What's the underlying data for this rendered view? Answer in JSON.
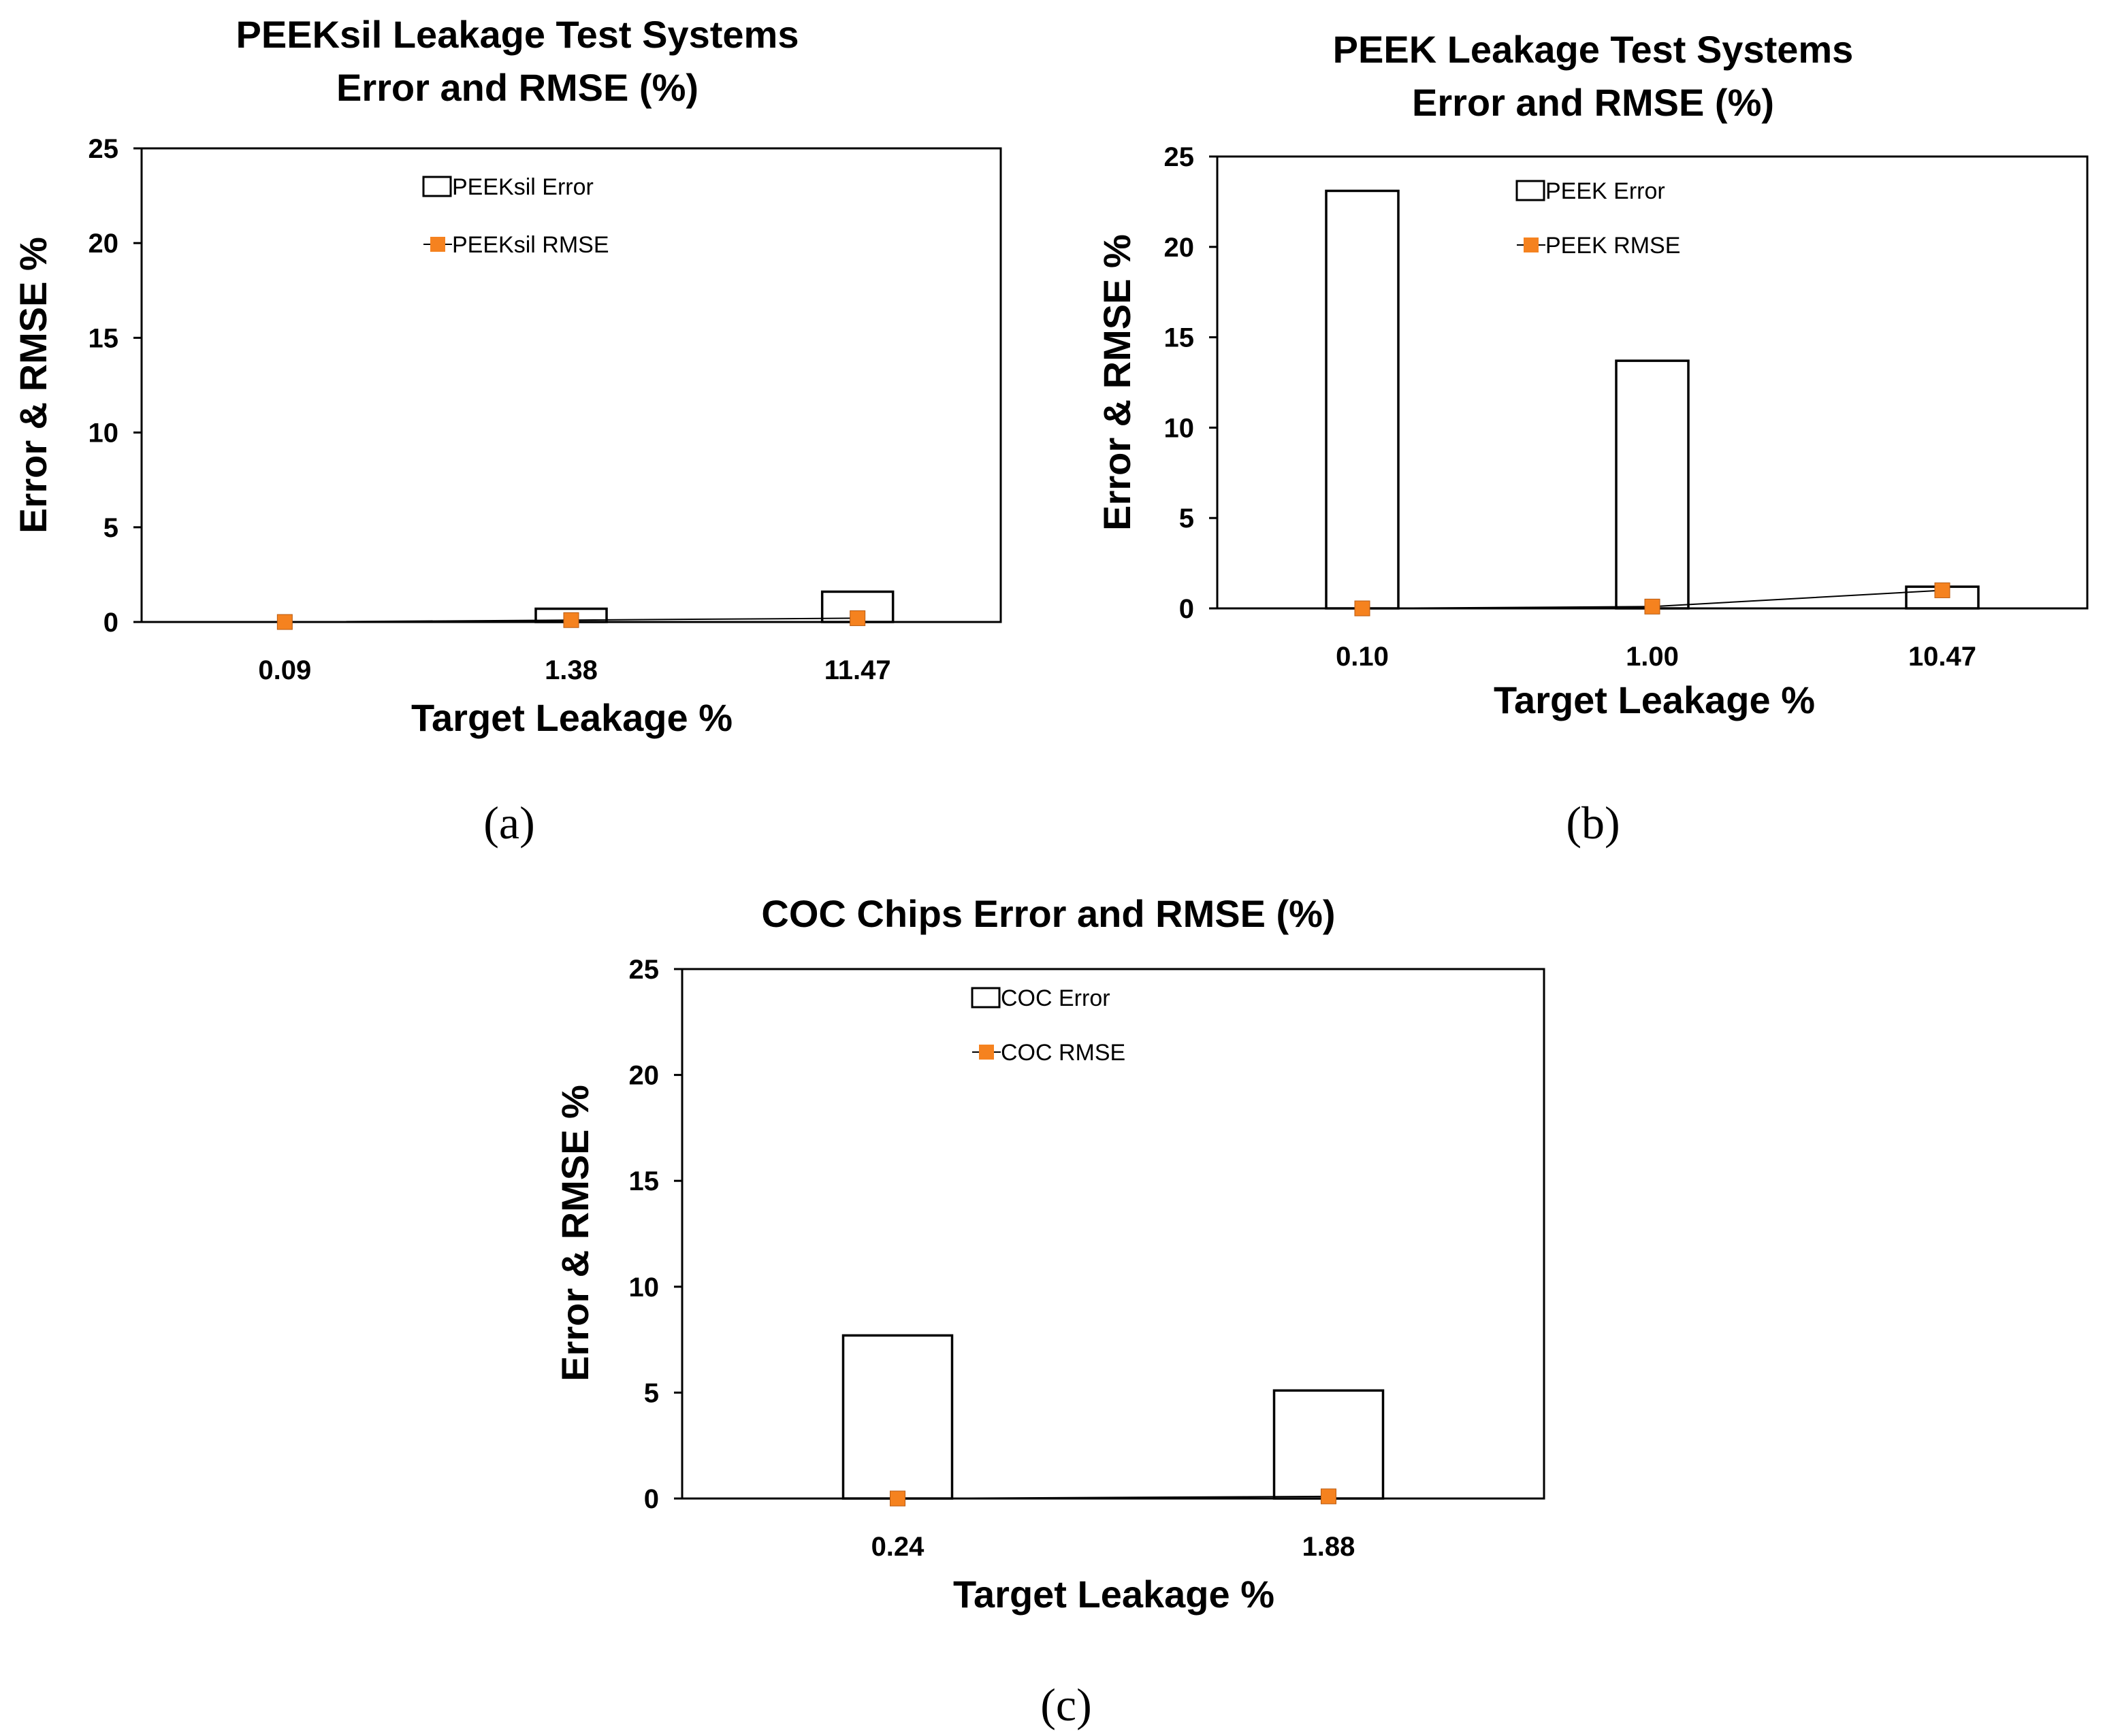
{
  "chart_data": [
    {
      "type": "bar",
      "panel": "(a)",
      "title": [
        "PEEKsil Leakage Test Systems",
        "Error and RMSE (%)"
      ],
      "xlabel": "Target Leakage %",
      "ylabel": "Error & RMSE %",
      "ylim": [
        0,
        25
      ],
      "yticks": [
        "0",
        "5",
        "10",
        "15",
        "20",
        "25"
      ],
      "categories": [
        "0.09",
        "1.38",
        "11.47"
      ],
      "series": [
        {
          "name": "PEEKsil Error",
          "kind": "bar",
          "values": [
            0.0,
            0.7,
            1.6
          ]
        },
        {
          "name": "PEEKsil RMSE",
          "kind": "line-marker",
          "values": [
            0.0,
            0.1,
            0.2
          ]
        }
      ],
      "grid": false,
      "legend": "top-center"
    },
    {
      "type": "bar",
      "panel": "(b)",
      "title": [
        "PEEK Leakage Test Systems",
        "Error and RMSE (%)"
      ],
      "xlabel": "Target Leakage %",
      "ylabel": "Error & RMSE %",
      "ylim": [
        0,
        25
      ],
      "yticks": [
        "0",
        "5",
        "10",
        "15",
        "20",
        "25"
      ],
      "categories": [
        "0.10",
        "1.00",
        "10.47"
      ],
      "series": [
        {
          "name": "PEEK Error",
          "kind": "bar",
          "values": [
            23.1,
            13.7,
            1.2
          ]
        },
        {
          "name": "PEEK RMSE",
          "kind": "line-marker",
          "values": [
            0.0,
            0.1,
            1.0
          ]
        }
      ],
      "grid": false,
      "legend": "top-center"
    },
    {
      "type": "bar",
      "panel": "(c)",
      "title": [
        "COC Chips Error and RMSE (%)"
      ],
      "xlabel": "Target Leakage %",
      "ylabel": "Error & RMSE  %",
      "ylim": [
        0,
        25
      ],
      "yticks": [
        "0",
        "5",
        "10",
        "15",
        "20",
        "25"
      ],
      "categories": [
        "0.24",
        "1.88"
      ],
      "series": [
        {
          "name": "COC Error",
          "kind": "bar",
          "values": [
            7.7,
            5.1
          ]
        },
        {
          "name": "COC RMSE",
          "kind": "line-marker",
          "values": [
            0.0,
            0.1
          ]
        }
      ],
      "grid": false,
      "legend": "top-center"
    }
  ],
  "colors": {
    "bar_fill": "#ffffff",
    "bar_stroke": "#000000",
    "marker": "#f5821f",
    "line": "#000000",
    "axis": "#000000"
  }
}
